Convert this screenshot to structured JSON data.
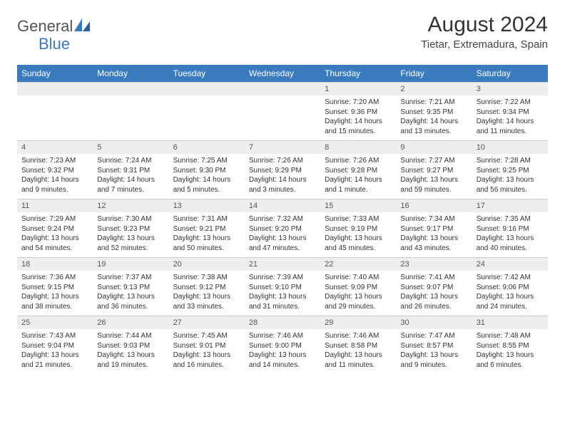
{
  "logo": {
    "word1": "General",
    "word2": "Blue"
  },
  "title": "August 2024",
  "location": "Tietar, Extremadura, Spain",
  "daysOfWeek": [
    "Sunday",
    "Monday",
    "Tuesday",
    "Wednesday",
    "Thursday",
    "Friday",
    "Saturday"
  ],
  "colors": {
    "headerBg": "#3a7bbf",
    "headerText": "#ffffff",
    "dayNumBg": "#eeeeee",
    "bodyText": "#333333"
  },
  "weeks": [
    {
      "numbers": [
        "",
        "",
        "",
        "",
        "1",
        "2",
        "3"
      ],
      "cells": [
        {
          "sunrise": "",
          "sunset": "",
          "daylight": ""
        },
        {
          "sunrise": "",
          "sunset": "",
          "daylight": ""
        },
        {
          "sunrise": "",
          "sunset": "",
          "daylight": ""
        },
        {
          "sunrise": "",
          "sunset": "",
          "daylight": ""
        },
        {
          "sunrise": "Sunrise: 7:20 AM",
          "sunset": "Sunset: 9:36 PM",
          "daylight": "Daylight: 14 hours and 15 minutes."
        },
        {
          "sunrise": "Sunrise: 7:21 AM",
          "sunset": "Sunset: 9:35 PM",
          "daylight": "Daylight: 14 hours and 13 minutes."
        },
        {
          "sunrise": "Sunrise: 7:22 AM",
          "sunset": "Sunset: 9:34 PM",
          "daylight": "Daylight: 14 hours and 11 minutes."
        }
      ]
    },
    {
      "numbers": [
        "4",
        "5",
        "6",
        "7",
        "8",
        "9",
        "10"
      ],
      "cells": [
        {
          "sunrise": "Sunrise: 7:23 AM",
          "sunset": "Sunset: 9:32 PM",
          "daylight": "Daylight: 14 hours and 9 minutes."
        },
        {
          "sunrise": "Sunrise: 7:24 AM",
          "sunset": "Sunset: 9:31 PM",
          "daylight": "Daylight: 14 hours and 7 minutes."
        },
        {
          "sunrise": "Sunrise: 7:25 AM",
          "sunset": "Sunset: 9:30 PM",
          "daylight": "Daylight: 14 hours and 5 minutes."
        },
        {
          "sunrise": "Sunrise: 7:26 AM",
          "sunset": "Sunset: 9:29 PM",
          "daylight": "Daylight: 14 hours and 3 minutes."
        },
        {
          "sunrise": "Sunrise: 7:26 AM",
          "sunset": "Sunset: 9:28 PM",
          "daylight": "Daylight: 14 hours and 1 minute."
        },
        {
          "sunrise": "Sunrise: 7:27 AM",
          "sunset": "Sunset: 9:27 PM",
          "daylight": "Daylight: 13 hours and 59 minutes."
        },
        {
          "sunrise": "Sunrise: 7:28 AM",
          "sunset": "Sunset: 9:25 PM",
          "daylight": "Daylight: 13 hours and 56 minutes."
        }
      ]
    },
    {
      "numbers": [
        "11",
        "12",
        "13",
        "14",
        "15",
        "16",
        "17"
      ],
      "cells": [
        {
          "sunrise": "Sunrise: 7:29 AM",
          "sunset": "Sunset: 9:24 PM",
          "daylight": "Daylight: 13 hours and 54 minutes."
        },
        {
          "sunrise": "Sunrise: 7:30 AM",
          "sunset": "Sunset: 9:23 PM",
          "daylight": "Daylight: 13 hours and 52 minutes."
        },
        {
          "sunrise": "Sunrise: 7:31 AM",
          "sunset": "Sunset: 9:21 PM",
          "daylight": "Daylight: 13 hours and 50 minutes."
        },
        {
          "sunrise": "Sunrise: 7:32 AM",
          "sunset": "Sunset: 9:20 PM",
          "daylight": "Daylight: 13 hours and 47 minutes."
        },
        {
          "sunrise": "Sunrise: 7:33 AM",
          "sunset": "Sunset: 9:19 PM",
          "daylight": "Daylight: 13 hours and 45 minutes."
        },
        {
          "sunrise": "Sunrise: 7:34 AM",
          "sunset": "Sunset: 9:17 PM",
          "daylight": "Daylight: 13 hours and 43 minutes."
        },
        {
          "sunrise": "Sunrise: 7:35 AM",
          "sunset": "Sunset: 9:16 PM",
          "daylight": "Daylight: 13 hours and 40 minutes."
        }
      ]
    },
    {
      "numbers": [
        "18",
        "19",
        "20",
        "21",
        "22",
        "23",
        "24"
      ],
      "cells": [
        {
          "sunrise": "Sunrise: 7:36 AM",
          "sunset": "Sunset: 9:15 PM",
          "daylight": "Daylight: 13 hours and 38 minutes."
        },
        {
          "sunrise": "Sunrise: 7:37 AM",
          "sunset": "Sunset: 9:13 PM",
          "daylight": "Daylight: 13 hours and 36 minutes."
        },
        {
          "sunrise": "Sunrise: 7:38 AM",
          "sunset": "Sunset: 9:12 PM",
          "daylight": "Daylight: 13 hours and 33 minutes."
        },
        {
          "sunrise": "Sunrise: 7:39 AM",
          "sunset": "Sunset: 9:10 PM",
          "daylight": "Daylight: 13 hours and 31 minutes."
        },
        {
          "sunrise": "Sunrise: 7:40 AM",
          "sunset": "Sunset: 9:09 PM",
          "daylight": "Daylight: 13 hours and 29 minutes."
        },
        {
          "sunrise": "Sunrise: 7:41 AM",
          "sunset": "Sunset: 9:07 PM",
          "daylight": "Daylight: 13 hours and 26 minutes."
        },
        {
          "sunrise": "Sunrise: 7:42 AM",
          "sunset": "Sunset: 9:06 PM",
          "daylight": "Daylight: 13 hours and 24 minutes."
        }
      ]
    },
    {
      "numbers": [
        "25",
        "26",
        "27",
        "28",
        "29",
        "30",
        "31"
      ],
      "cells": [
        {
          "sunrise": "Sunrise: 7:43 AM",
          "sunset": "Sunset: 9:04 PM",
          "daylight": "Daylight: 13 hours and 21 minutes."
        },
        {
          "sunrise": "Sunrise: 7:44 AM",
          "sunset": "Sunset: 9:03 PM",
          "daylight": "Daylight: 13 hours and 19 minutes."
        },
        {
          "sunrise": "Sunrise: 7:45 AM",
          "sunset": "Sunset: 9:01 PM",
          "daylight": "Daylight: 13 hours and 16 minutes."
        },
        {
          "sunrise": "Sunrise: 7:46 AM",
          "sunset": "Sunset: 9:00 PM",
          "daylight": "Daylight: 13 hours and 14 minutes."
        },
        {
          "sunrise": "Sunrise: 7:46 AM",
          "sunset": "Sunset: 8:58 PM",
          "daylight": "Daylight: 13 hours and 11 minutes."
        },
        {
          "sunrise": "Sunrise: 7:47 AM",
          "sunset": "Sunset: 8:57 PM",
          "daylight": "Daylight: 13 hours and 9 minutes."
        },
        {
          "sunrise": "Sunrise: 7:48 AM",
          "sunset": "Sunset: 8:55 PM",
          "daylight": "Daylight: 13 hours and 6 minutes."
        }
      ]
    }
  ]
}
